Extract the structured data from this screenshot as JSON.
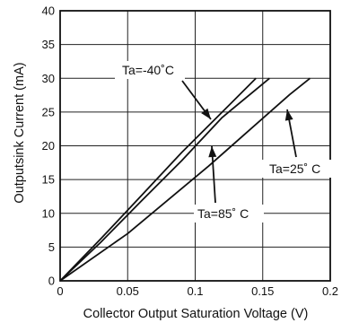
{
  "chart_data": {
    "type": "line",
    "title": "",
    "xlabel": "Collector Output Saturation Voltage (V)",
    "ylabel": "Outputsink Current (mA)",
    "xlim": [
      0,
      0.2
    ],
    "ylim": [
      0,
      40
    ],
    "xticks": [
      "0",
      "0.05",
      "0.1",
      "0.15",
      "0.2"
    ],
    "yticks": [
      "0",
      "5",
      "10",
      "15",
      "20",
      "25",
      "30",
      "35",
      "40"
    ],
    "grid": true,
    "legend": "none",
    "series": [
      {
        "name": "Ta=-40°C",
        "points": [
          [
            0,
            0
          ],
          [
            0.03,
            6.2
          ],
          [
            0.06,
            12.6
          ],
          [
            0.09,
            19.0
          ],
          [
            0.12,
            25.0
          ],
          [
            0.145,
            30
          ]
        ]
      },
      {
        "name": "Ta=25°C",
        "points": [
          [
            0,
            0
          ],
          [
            0.05,
            7.0
          ],
          [
            0.08,
            12.0
          ],
          [
            0.11,
            17.0
          ],
          [
            0.14,
            22.3
          ],
          [
            0.17,
            27.6
          ],
          [
            0.185,
            30
          ]
        ]
      },
      {
        "name": "Ta=85°C",
        "points": [
          [
            0,
            0
          ],
          [
            0.03,
            5.7
          ],
          [
            0.06,
            11.8
          ],
          [
            0.09,
            17.8
          ],
          [
            0.12,
            24.2
          ],
          [
            0.155,
            30
          ]
        ]
      }
    ],
    "annotations": [
      {
        "text": "Ta=-40˚C",
        "series": "Ta=-40°C"
      },
      {
        "text": "Ta=25˚ C",
        "series": "Ta=25°C"
      },
      {
        "text": "Ta=85˚ C",
        "series": "Ta=85°C"
      }
    ]
  }
}
